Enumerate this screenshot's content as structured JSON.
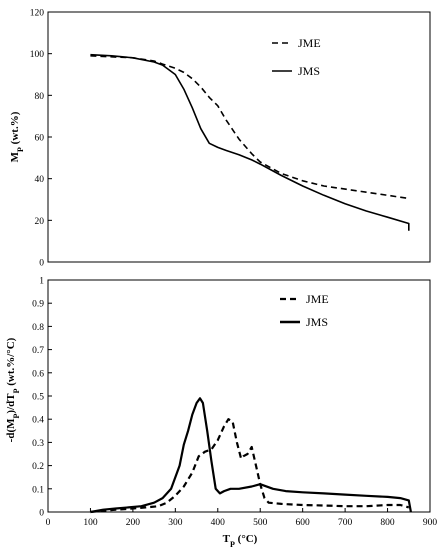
{
  "chart_data": [
    {
      "type": "line",
      "ylabel_main": "M",
      "ylabel_sub": "P",
      "ylabel_unit": " (wt.%)",
      "xlim": [
        0,
        900
      ],
      "ylim": [
        0,
        120
      ],
      "yticks": [
        0,
        20,
        40,
        60,
        80,
        100,
        120
      ],
      "xtick_labels_shown": false,
      "legend_position": "top-right",
      "series": [
        {
          "name": "JME",
          "style": "dashed",
          "x": [
            100,
            150,
            200,
            250,
            270,
            300,
            320,
            340,
            360,
            380,
            400,
            420,
            450,
            480,
            500,
            550,
            600,
            650,
            700,
            750,
            800,
            850
          ],
          "y": [
            99,
            98.5,
            98,
            96.5,
            95,
            93,
            91,
            88,
            84,
            79,
            75,
            68,
            59,
            52,
            48,
            42.5,
            39,
            36.5,
            35,
            33.5,
            32,
            30.5
          ]
        },
        {
          "name": "JMS",
          "style": "solid",
          "x": [
            100,
            150,
            200,
            250,
            270,
            300,
            320,
            340,
            360,
            380,
            400,
            420,
            450,
            480,
            500,
            550,
            600,
            650,
            700,
            750,
            800,
            850,
            850
          ],
          "y": [
            99.5,
            99,
            98,
            96,
            94.5,
            90,
            83,
            74,
            64,
            57,
            55,
            53.5,
            51.5,
            49,
            47,
            41.5,
            36.5,
            32,
            28,
            24.5,
            21.5,
            18.5,
            15
          ]
        }
      ]
    },
    {
      "type": "line",
      "ylabel_main": "-d(M",
      "ylabel_sub1": "P",
      "ylabel_mid": ")/dT",
      "ylabel_sub2": "P",
      "ylabel_unit": " (wt.%/°C)",
      "xlabel_main": "T",
      "xlabel_sub": "P",
      "xlabel_unit": " (°C)",
      "xlim": [
        0,
        900
      ],
      "ylim": [
        0,
        1
      ],
      "xticks": [
        0,
        100,
        200,
        300,
        400,
        500,
        600,
        700,
        800,
        900
      ],
      "yticks": [
        0,
        0.1,
        0.2,
        0.3,
        0.4,
        0.5,
        0.6,
        0.7,
        0.8,
        0.9,
        1
      ],
      "ytick_labels": [
        "0",
        "0.1",
        "0.2",
        "0.3",
        "0.4",
        "0.5",
        "0.6",
        "0.7",
        "0.8",
        "0.9",
        "1"
      ],
      "legend_position": "top-right",
      "series": [
        {
          "name": "JME",
          "style": "dashed",
          "x": [
            100,
            130,
            160,
            200,
            230,
            260,
            280,
            300,
            320,
            340,
            355,
            370,
            385,
            400,
            415,
            425,
            435,
            445,
            455,
            460,
            470,
            480,
            490,
            500,
            510,
            520,
            550,
            600,
            650,
            700,
            750,
            800,
            830,
            850
          ],
          "y": [
            0,
            0.005,
            0.01,
            0.015,
            0.02,
            0.025,
            0.04,
            0.07,
            0.11,
            0.17,
            0.24,
            0.26,
            0.27,
            0.31,
            0.37,
            0.4,
            0.39,
            0.3,
            0.23,
            0.24,
            0.25,
            0.28,
            0.2,
            0.12,
            0.06,
            0.04,
            0.035,
            0.03,
            0.028,
            0.025,
            0.025,
            0.03,
            0.03,
            0.02
          ]
        },
        {
          "name": "JMS",
          "style": "solid",
          "x": [
            100,
            130,
            160,
            190,
            220,
            250,
            270,
            290,
            310,
            320,
            330,
            340,
            350,
            358,
            365,
            375,
            385,
            395,
            405,
            415,
            430,
            450,
            480,
            500,
            530,
            560,
            600,
            650,
            700,
            750,
            800,
            830,
            850,
            855
          ],
          "y": [
            0,
            0.01,
            0.015,
            0.02,
            0.025,
            0.04,
            0.06,
            0.1,
            0.2,
            0.29,
            0.35,
            0.42,
            0.47,
            0.49,
            0.47,
            0.35,
            0.22,
            0.1,
            0.08,
            0.09,
            0.1,
            0.1,
            0.11,
            0.12,
            0.1,
            0.09,
            0.085,
            0.08,
            0.075,
            0.07,
            0.065,
            0.06,
            0.05,
            0
          ]
        }
      ]
    }
  ]
}
